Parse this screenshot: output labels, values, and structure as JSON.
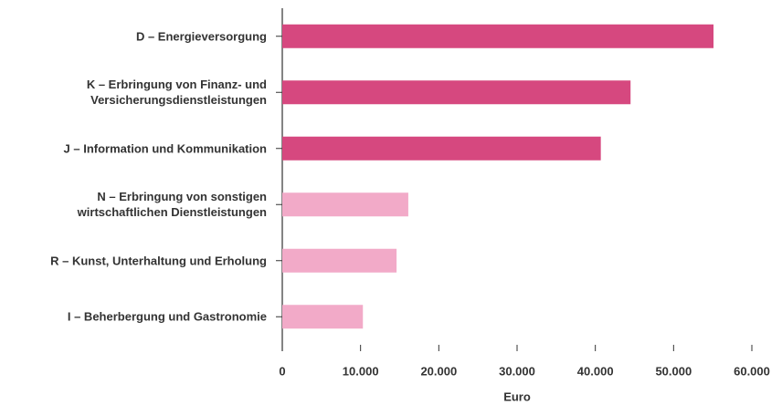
{
  "chart_data": {
    "type": "bar",
    "orientation": "horizontal",
    "categories": [
      "D – Energieversorgung",
      "K – Erbringung von Finanz- und\nVersicherungsdienstleistungen",
      "J – Information und Kommunikation",
      "N – Erbringung von sonstigen\nwirtschaftlichen Dienstleistungen",
      "R – Kunst, Unterhaltung und Erholung",
      "I – Beherbergung und Gastronomie"
    ],
    "values": [
      55100,
      44500,
      40700,
      16100,
      14600,
      10300
    ],
    "colors": [
      "#d6487f",
      "#d6487f",
      "#d6487f",
      "#f2aac8",
      "#f2aac8",
      "#f2aac8"
    ],
    "xlabel": "Euro",
    "xlim": [
      0,
      60000
    ],
    "xticks": [
      0,
      {
        "value": 10000,
        "label": "10.000"
      },
      {
        "value": 20000,
        "label": "20.000"
      },
      {
        "value": 30000,
        "label": "30.000"
      },
      {
        "value": 40000,
        "label": "40.000"
      },
      {
        "value": 50000,
        "label": "50.000"
      },
      {
        "value": 60000,
        "label": "60.000"
      }
    ]
  }
}
